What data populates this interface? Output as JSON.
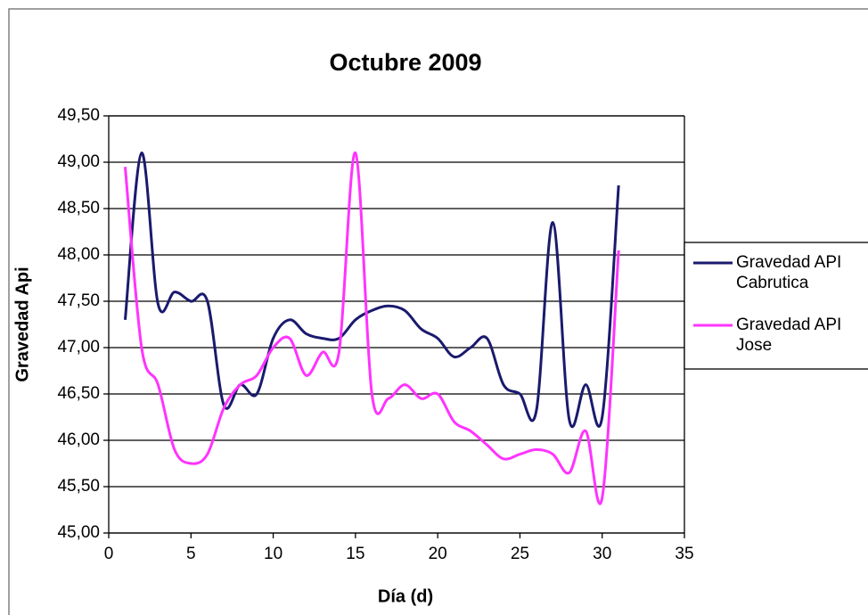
{
  "chart_data": {
    "type": "line",
    "title": "Octubre 2009",
    "x_label": "Día (d)",
    "y_label": "Gravedad Api",
    "x": [
      1,
      2,
      3,
      4,
      5,
      6,
      7,
      8,
      9,
      10,
      11,
      12,
      13,
      14,
      15,
      16,
      17,
      18,
      19,
      20,
      21,
      22,
      23,
      24,
      25,
      26,
      27,
      28,
      29,
      30,
      31
    ],
    "series": [
      {
        "name": "Gravedad API Cabrutica",
        "color": "#1a1a6e",
        "values": [
          47.3,
          49.1,
          47.47,
          47.6,
          47.5,
          47.5,
          46.38,
          46.6,
          46.5,
          47.1,
          47.3,
          47.15,
          47.1,
          47.1,
          47.3,
          47.4,
          47.45,
          47.4,
          47.2,
          47.1,
          46.9,
          47.0,
          47.1,
          46.6,
          46.5,
          46.32,
          48.35,
          46.22,
          46.6,
          46.25,
          48.75
        ]
      },
      {
        "name": "Gravedad API Jose",
        "color": "#ff33ff",
        "values": [
          48.95,
          47.0,
          46.6,
          45.9,
          45.75,
          45.85,
          46.35,
          46.6,
          46.7,
          47.0,
          47.1,
          46.7,
          46.95,
          46.95,
          49.1,
          46.5,
          46.45,
          46.6,
          46.45,
          46.5,
          46.2,
          46.1,
          45.95,
          45.8,
          45.85,
          45.9,
          45.85,
          45.65,
          46.1,
          45.38,
          48.05
        ]
      }
    ],
    "xlim": [
      0,
      35
    ],
    "xticks": [
      0,
      5,
      10,
      15,
      20,
      25,
      30,
      35
    ],
    "ylim": [
      45,
      49.5
    ],
    "yticks": [
      {
        "value": 45,
        "label": "45,00"
      },
      {
        "value": 45.5,
        "label": "45,50"
      },
      {
        "value": 46,
        "label": "46,00"
      },
      {
        "value": 46.5,
        "label": "46,50"
      },
      {
        "value": 47,
        "label": "47,00"
      },
      {
        "value": 47.5,
        "label": "47,50"
      },
      {
        "value": 48,
        "label": "48,00"
      },
      {
        "value": 48.5,
        "label": "48,50"
      },
      {
        "value": 49,
        "label": "49,00"
      },
      {
        "value": 49.5,
        "label": "49,50"
      }
    ],
    "grid": true,
    "legend": "right"
  }
}
